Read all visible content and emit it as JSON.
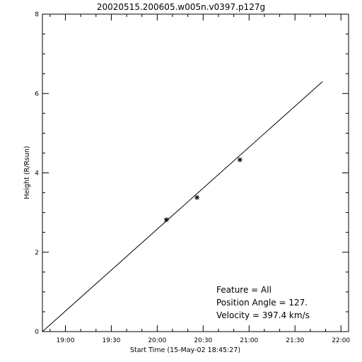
{
  "chart_data": {
    "type": "scatter",
    "title": "20020515.200605.w005n.v0397.p127g",
    "xlabel": "Start Time (15-May-02 18:45:27)",
    "ylabel": "Height (R/Rsun)",
    "x_range": [
      "18:45",
      "22:05"
    ],
    "ylim": [
      0,
      8
    ],
    "x_ticks": [
      "19:00",
      "19:30",
      "20:00",
      "20:30",
      "21:00",
      "21:30",
      "22:00"
    ],
    "y_ticks": [
      "0",
      "2",
      "4",
      "6",
      "8"
    ],
    "grid": false,
    "series": [
      {
        "type": "scatter",
        "marker": "asterisk",
        "points": [
          {
            "x": "20:06",
            "y": 2.82
          },
          {
            "x": "20:26",
            "y": 3.38
          },
          {
            "x": "20:54",
            "y": 4.33
          }
        ]
      },
      {
        "type": "line",
        "points": [
          {
            "x": "18:45",
            "y": 0.0
          },
          {
            "x": "21:48",
            "y": 6.3
          }
        ]
      }
    ],
    "annotations": [
      "Feature = All",
      "Position Angle =   127.",
      "Velocity =   397.4 km/s"
    ]
  }
}
